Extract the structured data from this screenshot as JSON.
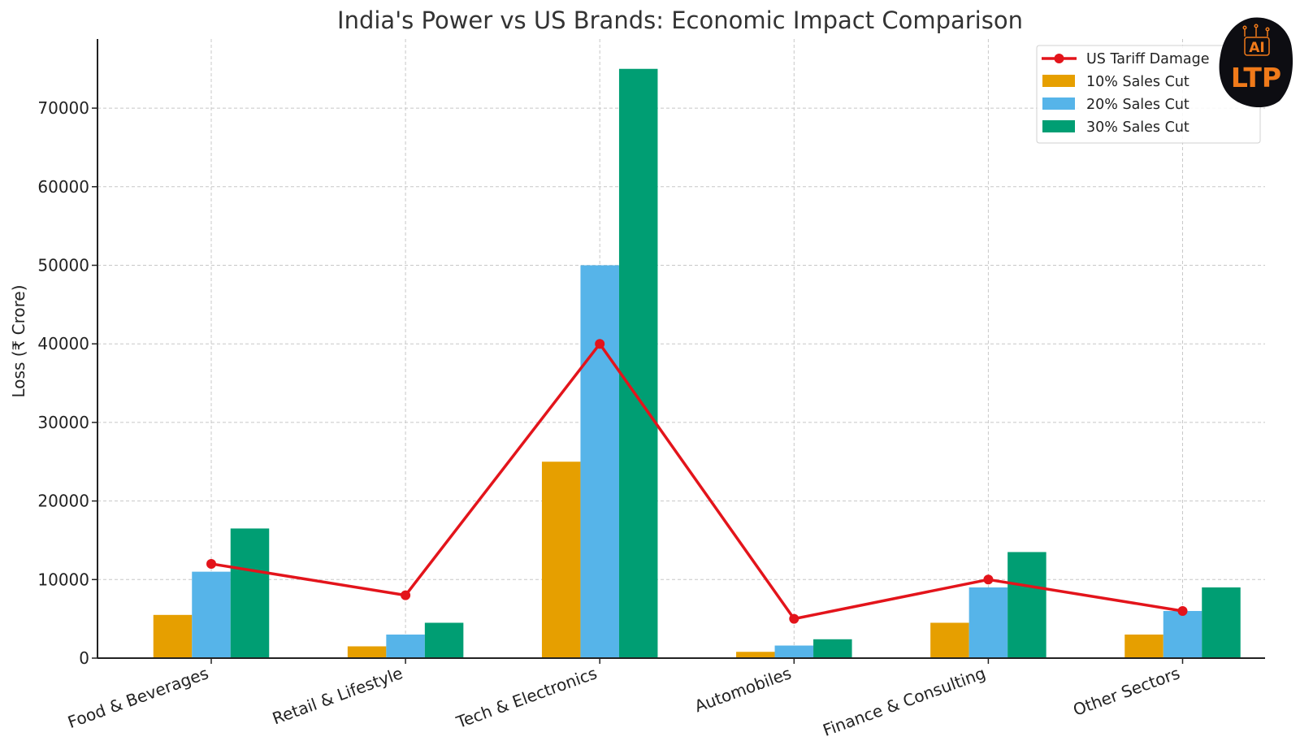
{
  "chart_data": {
    "type": "bar",
    "title": "India's Power vs US Brands: Economic Impact Comparison",
    "xlabel": "",
    "ylabel": "Loss (₹ Crore)",
    "categories": [
      "Food & Beverages",
      "Retail & Lifestyle",
      "Tech & Electronics",
      "Automobiles",
      "Finance & Consulting",
      "Other Sectors"
    ],
    "ylim": [
      0,
      78800
    ],
    "yticks": [
      0,
      10000,
      20000,
      30000,
      40000,
      50000,
      60000,
      70000
    ],
    "grid": true,
    "legend_position": "top-right",
    "series": [
      {
        "name": "10% Sales Cut",
        "kind": "bar",
        "color": "#E69F00",
        "values": [
          5500,
          1500,
          25000,
          800,
          4500,
          3000
        ]
      },
      {
        "name": "20% Sales Cut",
        "kind": "bar",
        "color": "#56B4E9",
        "values": [
          11000,
          3000,
          50000,
          1600,
          9000,
          6000
        ]
      },
      {
        "name": "30% Sales Cut",
        "kind": "bar",
        "color": "#009E73",
        "values": [
          16500,
          4500,
          75000,
          2400,
          13500,
          9000
        ]
      },
      {
        "name": "US Tariff Damage",
        "kind": "line",
        "color": "#E3141B",
        "values": [
          12000,
          8000,
          40000,
          5000,
          10000,
          6000
        ]
      }
    ],
    "legend_order": [
      "US Tariff Damage",
      "10% Sales Cut",
      "20% Sales Cut",
      "30% Sales Cut"
    ]
  },
  "logo": {
    "line1": "AI",
    "line2": "LTP",
    "colors": {
      "background": "#0d0d12",
      "text": "#f07a1a"
    }
  }
}
